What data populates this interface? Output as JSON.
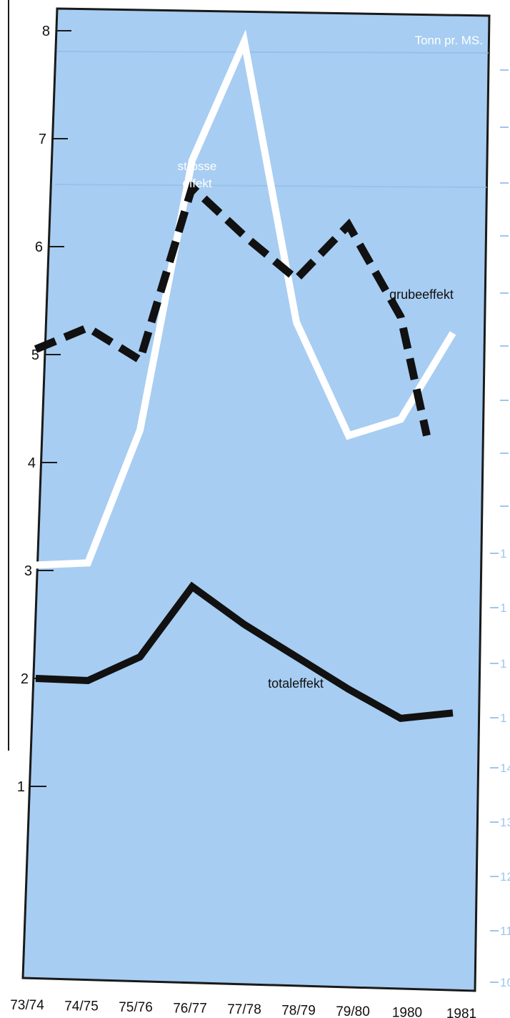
{
  "chart_data": {
    "type": "line",
    "unit_label": "Tonn pr. MS.",
    "x": [
      "73/74",
      "74/75",
      "75/76",
      "76/77",
      "77/78",
      "78/79",
      "79/80",
      "1980",
      "1981"
    ],
    "yticks": [
      1,
      2,
      3,
      4,
      5,
      6,
      7,
      8
    ],
    "ylim": [
      0.2,
      8.6
    ],
    "grid": false,
    "series": [
      {
        "name": "strosse effekt",
        "name_lines": [
          "strosse",
          "effekt"
        ],
        "style": "solid",
        "color": "#ffffff",
        "points": [
          [
            0,
            3.05
          ],
          [
            1,
            3.07
          ],
          [
            2,
            4.3
          ],
          [
            3,
            6.8
          ],
          [
            4,
            7.9
          ],
          [
            5,
            5.3
          ],
          [
            6,
            4.25
          ],
          [
            7,
            4.4
          ],
          [
            8,
            5.2
          ]
        ]
      },
      {
        "name": "grubeeffekt",
        "style": "dashed",
        "color": "#111111",
        "points": [
          [
            0,
            5.05
          ],
          [
            1,
            5.25
          ],
          [
            2,
            4.95
          ],
          [
            3,
            6.55
          ],
          [
            4,
            6.1
          ],
          [
            5,
            5.7
          ],
          [
            6,
            6.2
          ],
          [
            7,
            5.35
          ],
          [
            7.5,
            4.25
          ]
        ]
      },
      {
        "name": "totaleffekt",
        "style": "solid",
        "color": "#111111",
        "points": [
          [
            0,
            2.0
          ],
          [
            1,
            1.98
          ],
          [
            2,
            2.2
          ],
          [
            3,
            2.85
          ],
          [
            4,
            2.5
          ],
          [
            5,
            2.2
          ],
          [
            6,
            1.9
          ],
          [
            7,
            1.63
          ],
          [
            8,
            1.68
          ]
        ]
      }
    ],
    "colors": {
      "panel": "#a7cdf2",
      "panel_border": "#1a1a1a"
    },
    "right_margin_ticks": [
      "1",
      "1",
      "1",
      "1",
      "14",
      "13",
      "12",
      "11",
      "10"
    ]
  }
}
